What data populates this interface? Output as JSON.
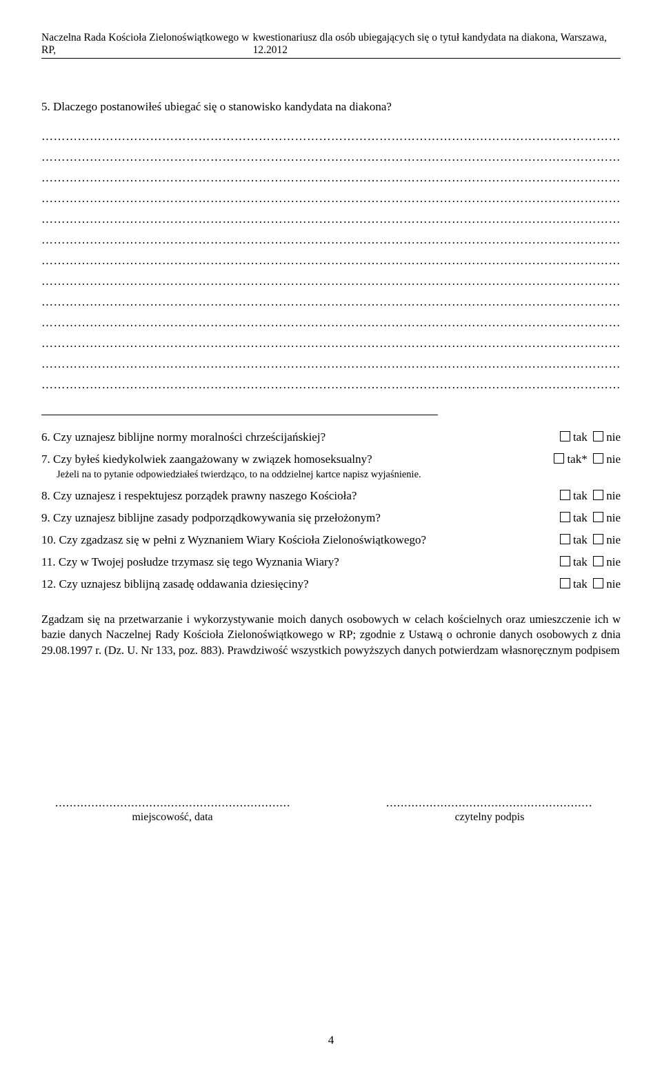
{
  "header": {
    "left": "Naczelna Rada Kościoła Zielonoświątkowego w RP,",
    "right": "kwestionariusz dla osób ubiegających się o tytuł kandydata na diakona, Warszawa, 12.2012"
  },
  "question5": "5. Dlaczego postanowiłeś ubiegać się o stanowisko kandydata na diakona?",
  "blank_lines": {
    "count": 13,
    "fill": "…………………………………………………………………………………………………………………………………………"
  },
  "qa": [
    {
      "text": "6. Czy uznajesz biblijne normy moralności chrześcijańskiej?",
      "ans": {
        "yes": "tak",
        "no": "nie",
        "star": false
      }
    },
    {
      "text": "7. Czy byłeś kiedykolwiek zaangażowany w związek homoseksualny?",
      "ans": {
        "yes": "tak",
        "no": "nie",
        "star": true
      },
      "sub": "Jeżeli na to pytanie odpowiedziałeś twierdząco, to na oddzielnej kartce napisz wyjaśnienie."
    },
    {
      "text": "8. Czy uznajesz i respektujesz porządek prawny naszego Kościoła?",
      "ans": {
        "yes": "tak",
        "no": "nie",
        "star": false
      }
    },
    {
      "text": "9. Czy uznajesz biblijne zasady podporządkowywania się przełożonym?",
      "ans": {
        "yes": "tak",
        "no": "nie",
        "star": false
      }
    },
    {
      "text": "10. Czy zgadzasz się w pełni z Wyznaniem Wiary Kościoła Zielonoświątkowego?",
      "ans": {
        "yes": "tak",
        "no": "nie",
        "star": false
      }
    },
    {
      "text": "11. Czy w Twojej posłudze trzymasz się tego Wyznania Wiary?",
      "ans": {
        "yes": "tak",
        "no": "nie",
        "star": false
      }
    },
    {
      "text": "12. Czy uznajesz biblijną zasadę oddawania dziesięciny?",
      "ans": {
        "yes": "tak",
        "no": "nie",
        "star": false
      }
    }
  ],
  "consent": "Zgadzam się na przetwarzanie i wykorzystywanie moich danych osobowych w celach kościelnych oraz umieszczenie ich w bazie danych Naczelnej Rady Kościoła Zielonoświątkowego w RP; zgodnie z  Ustawą o ochronie danych osobowych z dnia 29.08.1997 r. (Dz. U. Nr 133, poz. 883). Prawdziwość wszystkich powyższych danych potwierdzam własnoręcznym podpisem",
  "signature": {
    "dots": "....................................................................",
    "left_label": "miejscowość, data",
    "right_label": "czytelny podpis"
  },
  "page_number": "4",
  "colors": {
    "text": "#000000",
    "background": "#ffffff",
    "rule": "#000000"
  }
}
